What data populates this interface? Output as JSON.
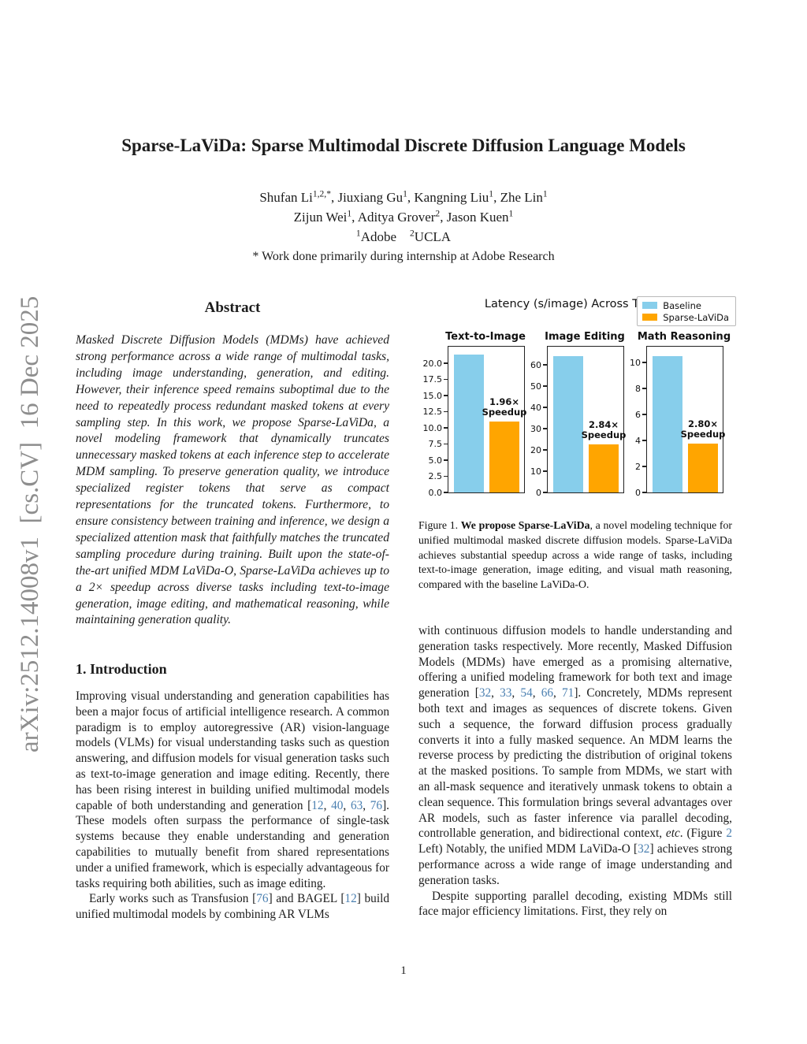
{
  "sidebar": {
    "arxiv_label": "arXiv:2512.14008v1  [cs.CV]  16 Dec 2025"
  },
  "header": {
    "title": "Sparse-LaViDa: Sparse Multimodal Discrete Diffusion Language Models",
    "author_line1": [
      {
        "s": "Shufan Li"
      },
      {
        "s": "1,2,*",
        "c": "sup"
      },
      {
        "s": ", Jiuxiang Gu"
      },
      {
        "s": "1",
        "c": "sup"
      },
      {
        "s": ", Kangning Liu"
      },
      {
        "s": "1",
        "c": "sup"
      },
      {
        "s": ", Zhe Lin"
      },
      {
        "s": "1",
        "c": "sup"
      }
    ],
    "author_line2": [
      {
        "s": "Zijun Wei"
      },
      {
        "s": "1",
        "c": "sup"
      },
      {
        "s": ", Aditya Grover"
      },
      {
        "s": "2",
        "c": "sup"
      },
      {
        "s": ", Jason Kuen"
      },
      {
        "s": "1",
        "c": "sup"
      }
    ],
    "affiliation_line": [
      {
        "s": "1",
        "c": "sup"
      },
      {
        "s": "Adobe  "
      },
      {
        "s": "2",
        "c": "sup"
      },
      {
        "s": "UCLA"
      }
    ],
    "footnote_line": "* Work done primarily during internship at Adobe Research"
  },
  "abstract": {
    "heading": "Abstract",
    "body": "Masked Discrete Diffusion Models (MDMs) have achieved strong performance across a wide range of multimodal tasks, including image understanding, generation, and editing. However, their inference speed remains suboptimal due to the need to repeatedly process redundant masked tokens at every sampling step. In this work, we propose Sparse-LaViDa, a novel modeling framework that dynamically truncates unnecessary masked tokens at each inference step to accelerate MDM sampling. To preserve generation quality, we introduce specialized register tokens that serve as compact representations for the truncated tokens. Furthermore, to ensure consistency between training and inference, we design a specialized attention mask that faithfully matches the truncated sampling procedure during training. Built upon the state-of-the-art unified MDM LaViDa-O, Sparse-LaViDa achieves up to a 2× speedup across diverse tasks including text-to-image generation, image editing, and mathematical reasoning, while maintaining generation quality."
  },
  "introduction": {
    "heading": "1. Introduction",
    "p1": [
      {
        "s": "Improving visual understanding and generation capabilities has been a major focus of artificial intelligence research. A common paradigm is to employ autoregressive (AR) vision-language models (VLMs) for visual understanding tasks such as question answering, and diffusion models for visual generation tasks such as text-to-image generation and image editing. Recently, there has been rising interest in building unified multimodal models capable of both understanding and generation ["
      },
      {
        "s": "12",
        "c": "cite"
      },
      {
        "s": ", "
      },
      {
        "s": "40",
        "c": "cite"
      },
      {
        "s": ", "
      },
      {
        "s": "63",
        "c": "cite"
      },
      {
        "s": ", "
      },
      {
        "s": "76",
        "c": "cite"
      },
      {
        "s": "]. These models often surpass the performance of single-task systems because they enable understanding and generation capabilities to mutually benefit from shared representations under a unified framework, which is especially advantageous for tasks requiring both abilities, such as image editing."
      }
    ],
    "p2": [
      {
        "s": "Early works such as Transfusion ["
      },
      {
        "s": "76",
        "c": "cite"
      },
      {
        "s": "] and BAGEL ["
      },
      {
        "s": "12",
        "c": "cite"
      },
      {
        "s": "] build unified multimodal models by combining AR VLMs"
      }
    ]
  },
  "right_column": {
    "p1": [
      {
        "s": "with continuous diffusion models to handle understanding and generation tasks respectively. More recently, Masked Diffusion Models (MDMs) have emerged as a promising alternative, offering a unified modeling framework for both text and image generation ["
      },
      {
        "s": "32",
        "c": "cite"
      },
      {
        "s": ", "
      },
      {
        "s": "33",
        "c": "cite"
      },
      {
        "s": ", "
      },
      {
        "s": "54",
        "c": "cite"
      },
      {
        "s": ", "
      },
      {
        "s": "66",
        "c": "cite"
      },
      {
        "s": ", "
      },
      {
        "s": "71",
        "c": "cite"
      },
      {
        "s": "]. Concretely, MDMs represent both text and images as sequences of discrete tokens. Given such a sequence, the forward diffusion process gradually converts it into a fully masked sequence. An MDM learns the reverse process by predicting the distribution of original tokens at the masked positions. To sample from MDMs, we start with an all-mask sequence and iteratively unmask tokens to obtain a clean sequence. This formulation brings several advantages over AR models, such as faster inference via parallel decoding, controllable generation, and bidirectional context, "
      },
      {
        "s": "etc",
        "c": "i"
      },
      {
        "s": ". (Figure "
      },
      {
        "s": "2",
        "c": "cite"
      },
      {
        "s": " Left) Notably, the unified MDM LaViDa-O ["
      },
      {
        "s": "32",
        "c": "cite"
      },
      {
        "s": "] achieves strong performance across a wide range of image understanding and generation tasks."
      }
    ],
    "p2": [
      {
        "s": "Despite supporting parallel decoding, existing MDMs still face major efficiency limitations. First, they rely on"
      }
    ]
  },
  "figure1": {
    "caption": [
      {
        "s": "Figure 1.  "
      },
      {
        "s": "We propose Sparse-LaViDa",
        "c": "b"
      },
      {
        "s": ", a novel modeling technique for unified multimodal masked discrete diffusion models. Sparse-LaViDa achieves substantial speedup across a wide range of tasks, including text-to-image generation, image editing, and visual math reasoning, compared with the baseline LaViDa-O."
      }
    ]
  },
  "chart_data": {
    "type": "bar",
    "title": "Latency (s/image) Across Tasks",
    "legend": [
      {
        "label": "Baseline",
        "color": "#87CEEB"
      },
      {
        "label": "Sparse-LaViDa",
        "color": "#FFA500"
      }
    ],
    "grid": false,
    "legend_position": "upper right",
    "subplots": [
      {
        "title": "Text-to-Image",
        "ylim": [
          0,
          22.5
        ],
        "ytick_values": [
          0,
          2.5,
          5,
          7.5,
          10,
          12.5,
          15,
          17.5,
          20
        ],
        "ytick_labels": [
          "0.0",
          "2.5",
          "5.0",
          "7.5",
          "10.0",
          "12.5",
          "15.0",
          "17.5",
          "20.0"
        ],
        "series": [
          {
            "name": "Baseline",
            "value": 21.3
          },
          {
            "name": "Sparse-LaViDa",
            "value": 10.9
          }
        ],
        "speedup": "1.96×",
        "speedup_caption": "Speedup"
      },
      {
        "title": "Image Editing",
        "ylim": [
          0,
          68.5
        ],
        "ytick_values": [
          0,
          10,
          20,
          30,
          40,
          50,
          60
        ],
        "ytick_labels": [
          "0",
          "10",
          "20",
          "30",
          "40",
          "50",
          "60"
        ],
        "series": [
          {
            "name": "Baseline",
            "value": 64
          },
          {
            "name": "Sparse-LaViDa",
            "value": 22.5
          }
        ],
        "speedup": "2.84×",
        "speedup_caption": "Speedup"
      },
      {
        "title": "Math Reasoning",
        "ylim": [
          0,
          11.2
        ],
        "ytick_values": [
          0,
          2,
          4,
          6,
          8,
          10
        ],
        "ytick_labels": [
          "0",
          "2",
          "4",
          "6",
          "8",
          "10"
        ],
        "series": [
          {
            "name": "Baseline",
            "value": 10.5
          },
          {
            "name": "Sparse-LaViDa",
            "value": 3.75
          }
        ],
        "speedup": "2.80×",
        "speedup_caption": "Speedup"
      }
    ]
  },
  "page": {
    "number": "1"
  }
}
